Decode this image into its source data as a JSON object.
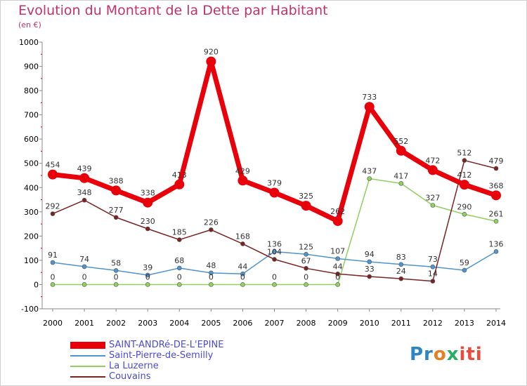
{
  "title": "Evolution du Montant de la Dette par Habitant",
  "unit": "(en €)",
  "chart_data": {
    "type": "line",
    "title": "Evolution du Montant de la Dette par Habitant",
    "subtitle": "(en €)",
    "xlabel": "",
    "ylabel": "",
    "x": [
      "2000",
      "2001",
      "2002",
      "2003",
      "2004",
      "2005",
      "2006",
      "2007",
      "2008",
      "2009",
      "2010",
      "2011",
      "2012",
      "2013",
      "2014"
    ],
    "ylim": [
      -100,
      1000
    ],
    "yticks": [
      -100,
      0,
      100,
      200,
      300,
      400,
      500,
      600,
      700,
      800,
      900,
      1000
    ],
    "grid": false,
    "legend": "bottom-left",
    "series": [
      {
        "name": "SAINT-ANDRé-DE-L'EPINE",
        "color": "#e8000b",
        "values": [
          454,
          439,
          388,
          338,
          413,
          920,
          429,
          379,
          325,
          262,
          733,
          552,
          472,
          412,
          368
        ],
        "labels": [
          "454",
          "439",
          "388",
          "338",
          "413",
          "920",
          "429",
          "379",
          "325",
          "262",
          "733",
          "552",
          "472",
          "412",
          "368"
        ]
      },
      {
        "name": "Saint-Pierre-de-Semilly",
        "color": "#4f94cd",
        "values": [
          91,
          74,
          58,
          39,
          68,
          48,
          44,
          136,
          125,
          107,
          94,
          83,
          73,
          59,
          136
        ],
        "labels": [
          "91",
          "74",
          "58",
          "39",
          "68",
          "48",
          "44",
          "136",
          "125",
          "107",
          "94",
          "83",
          "73",
          "59",
          "136"
        ]
      },
      {
        "name": "La Luzerne",
        "color": "#8fd060",
        "values": [
          0,
          0,
          0,
          0,
          0,
          0,
          0,
          0,
          0,
          0,
          437,
          417,
          327,
          290,
          261
        ],
        "labels": [
          "0",
          "0",
          "0",
          "0",
          "0",
          "0",
          "0",
          "0",
          "0",
          "0",
          "437",
          "417",
          "327",
          "290",
          "261"
        ]
      },
      {
        "name": "Couvains",
        "color": "#7b2323",
        "values": [
          292,
          348,
          277,
          230,
          185,
          226,
          168,
          104,
          67,
          44,
          33,
          24,
          14,
          512,
          479
        ],
        "labels": [
          "292",
          "348",
          "277",
          "230",
          "185",
          "226",
          "168",
          "104",
          "67",
          "44",
          "33",
          "24",
          "14",
          "512",
          "479"
        ]
      }
    ]
  },
  "logo": {
    "p1": "Pr",
    "p2": "o",
    "p3": "x",
    "p4": "iti"
  }
}
